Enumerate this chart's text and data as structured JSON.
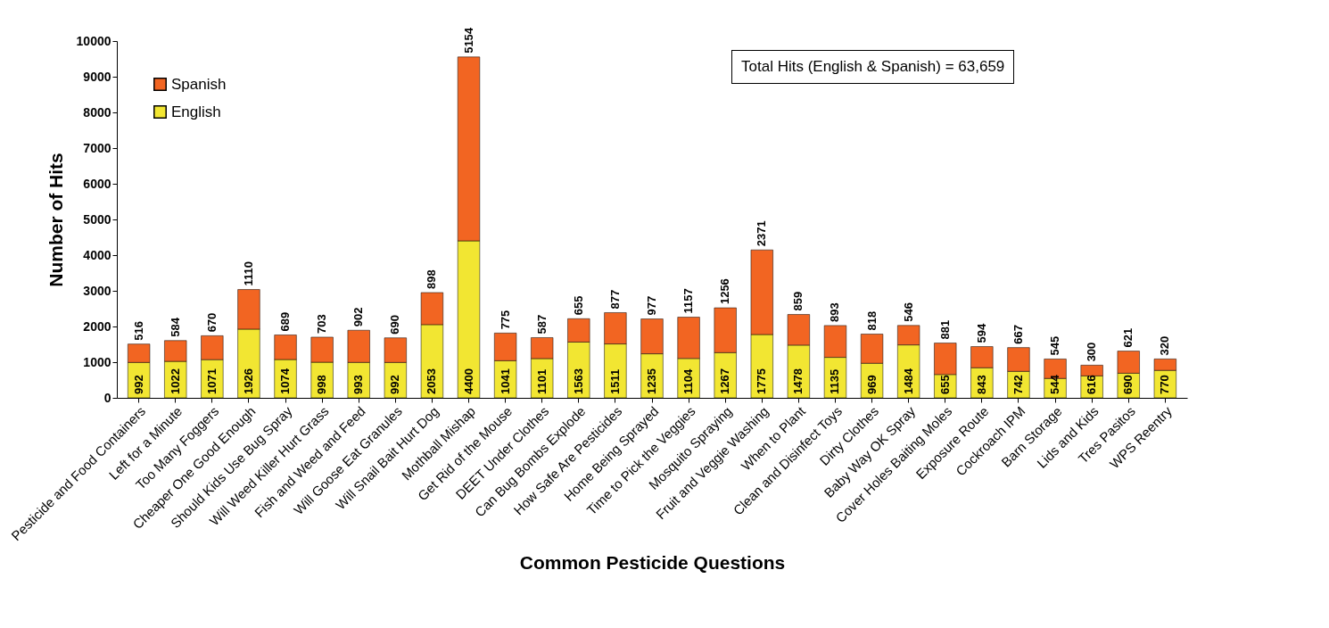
{
  "chart_data": {
    "type": "bar",
    "stacked": true,
    "xlabel": "Common Pesticide Questions",
    "ylabel": "Number of Hits",
    "categories": [
      "Pesticide and Food Containers",
      "Left for a Minute",
      "Too Many Foggers",
      "Cheaper One Good Enough",
      "Should Kids Use Bug Spray",
      "Will Weed Killer Hurt Grass",
      "Fish and Weed and Feed",
      "Will Goose Eat Granules",
      "Will Snail Bait Hurt Dog",
      "Mothball Mishap",
      "Get Rid of the Mouse",
      "DEET Under Clothes",
      "Can Bug Bombs Explode",
      "How Safe Are Pesticides",
      "Home Being Sprayed",
      "Time to Pick the Veggies",
      "Mosquito Spraying",
      "Fruit and Veggie Washing",
      "When to Plant",
      "Clean and Disinfect Toys",
      "Dirty Clothes",
      "Baby Way OK Spray",
      "Cover Holes Baiting Moles",
      "Exposure Route",
      "Cockroach IPM",
      "Barn Storage",
      "Lids and Kids",
      "Tres Pasitos",
      "WPS Reentry"
    ],
    "series": [
      {
        "name": "English",
        "color": "#f2e632",
        "values": [
          992,
          1022,
          1071,
          1926,
          1074,
          998,
          993,
          992,
          2053,
          4400,
          1041,
          1101,
          1563,
          1511,
          1235,
          1104,
          1267,
          1775,
          1478,
          1135,
          969,
          1484,
          655,
          843,
          742,
          544,
          616,
          690,
          770
        ]
      },
      {
        "name": "Spanish",
        "color": "#f26522",
        "values": [
          516,
          584,
          670,
          1110,
          689,
          703,
          902,
          690,
          898,
          5154,
          775,
          587,
          655,
          877,
          977,
          1157,
          1256,
          2371,
          859,
          893,
          818,
          546,
          881,
          594,
          667,
          545,
          300,
          621,
          320
        ]
      }
    ],
    "ylim": [
      0,
      10000
    ],
    "yticks": [
      0,
      1000,
      2000,
      3000,
      4000,
      5000,
      6000,
      7000,
      8000,
      9000,
      10000
    ],
    "data_labels": true,
    "legend": "top left",
    "annotations": [
      "Total Hits (English & Spanish) = 63,659"
    ]
  }
}
